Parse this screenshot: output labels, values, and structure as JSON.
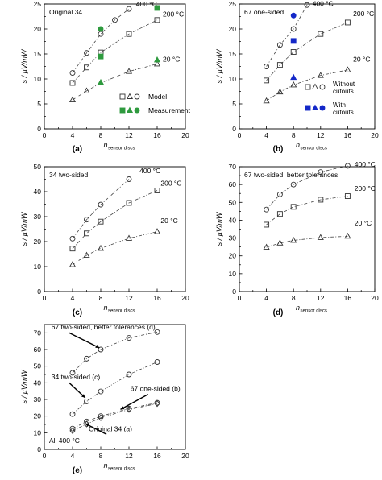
{
  "chart_data": [
    {
      "id": "a",
      "type": "scatter",
      "panel_label": "(a)",
      "title": "Original 34",
      "ylabel": "s / µV/mW",
      "xlabel": "n",
      "xlabel_sub": "sensor discs",
      "xlim": [
        0,
        20
      ],
      "ylim": [
        0,
        25
      ],
      "xticks": [
        0,
        4,
        8,
        12,
        16,
        20
      ],
      "yticks": [
        0,
        5,
        10,
        15,
        20,
        25
      ],
      "grid": false,
      "series": [
        {
          "name": "400 °C",
          "marker": "circle",
          "fill": "none",
          "line": "dashdot",
          "x": [
            4,
            6,
            8,
            10,
            12
          ],
          "y": [
            11.2,
            15.2,
            19.0,
            21.8,
            24.0
          ]
        },
        {
          "name": "200 °C",
          "marker": "square",
          "fill": "none",
          "line": "dashdot",
          "x": [
            4,
            6,
            8,
            12,
            16
          ],
          "y": [
            9.2,
            12.3,
            15.3,
            19.0,
            21.8
          ]
        },
        {
          "name": "20 °C",
          "marker": "triangle",
          "fill": "none",
          "line": "dashdot",
          "x": [
            4,
            6,
            8,
            12,
            16
          ],
          "y": [
            5.8,
            7.6,
            9.2,
            11.5,
            13.0
          ]
        },
        {
          "marker": "circle",
          "fill": "#2e9a3e",
          "line": "none",
          "x": [
            8
          ],
          "y": [
            20.0
          ]
        },
        {
          "marker": "square",
          "fill": "#2e9a3e",
          "line": "none",
          "x": [
            8,
            16
          ],
          "y": [
            14.5,
            24.2
          ]
        },
        {
          "marker": "triangle",
          "fill": "#2e9a3e",
          "line": "none",
          "x": [
            8,
            16
          ],
          "y": [
            9.3,
            13.8
          ]
        }
      ],
      "curve_labels": [
        {
          "text": "400 °C",
          "x": 13.0,
          "y": 24.5
        },
        {
          "text": "200 °C",
          "x": 16.8,
          "y": 22.5
        },
        {
          "text": "20 °C",
          "x": 16.8,
          "y": 13.5
        }
      ],
      "legend": {
        "position": "bottom-right",
        "entries": [
          {
            "label": "Model",
            "markers": [
              "square",
              "triangle",
              "circle"
            ],
            "fill": "none"
          },
          {
            "label": "Measurement",
            "markers": [
              "square",
              "triangle",
              "circle"
            ],
            "fill": "#2e9a3e"
          }
        ]
      }
    },
    {
      "id": "b",
      "type": "scatter",
      "panel_label": "(b)",
      "title": "67 one-sided",
      "ylabel": "s / µV/mW",
      "xlabel": "n",
      "xlabel_sub": "sensor discs",
      "xlim": [
        0,
        20
      ],
      "ylim": [
        0,
        25
      ],
      "xticks": [
        0,
        4,
        8,
        12,
        16,
        20
      ],
      "yticks": [
        0,
        5,
        10,
        15,
        20,
        25
      ],
      "grid": false,
      "series": [
        {
          "name": "400 °C",
          "marker": "circle",
          "fill": "none",
          "line": "dashdot",
          "x": [
            4,
            6,
            8,
            10
          ],
          "y": [
            12.5,
            16.8,
            20.0,
            24.8
          ]
        },
        {
          "name": "200 °C",
          "marker": "square",
          "fill": "none",
          "line": "dashdot",
          "x": [
            4,
            6,
            8,
            12,
            16
          ],
          "y": [
            9.7,
            12.8,
            15.4,
            19.0,
            21.3
          ]
        },
        {
          "name": "20 °C",
          "marker": "triangle",
          "fill": "none",
          "line": "dashdot",
          "x": [
            4,
            6,
            8,
            12,
            16
          ],
          "y": [
            5.6,
            7.4,
            8.8,
            10.7,
            11.8
          ]
        },
        {
          "marker": "circle",
          "fill": "#1428c8",
          "line": "none",
          "x": [
            8
          ],
          "y": [
            22.7
          ]
        },
        {
          "marker": "square",
          "fill": "#1428c8",
          "line": "none",
          "x": [
            8
          ],
          "y": [
            17.6
          ]
        },
        {
          "marker": "triangle",
          "fill": "#1428c8",
          "line": "none",
          "x": [
            8
          ],
          "y": [
            10.3
          ]
        }
      ],
      "curve_labels": [
        {
          "text": "400 °C",
          "x": 10.8,
          "y": 24.6
        },
        {
          "text": "200 °C",
          "x": 16.8,
          "y": 22.6
        },
        {
          "text": "20 °C",
          "x": 16.8,
          "y": 13.5
        }
      ],
      "legend": {
        "position": "bottom-right",
        "entries": [
          {
            "label_lines": [
              "Without",
              "cutouts"
            ],
            "markers": [
              "square",
              "triangle",
              "circle"
            ],
            "fill": "none"
          },
          {
            "label_lines": [
              "With",
              "cutouts"
            ],
            "markers": [
              "square",
              "triangle",
              "circle"
            ],
            "fill": "#1428c8"
          }
        ]
      }
    },
    {
      "id": "c",
      "type": "scatter",
      "panel_label": "(c)",
      "title": "34 two-sided",
      "ylabel": "s / µV/mW",
      "xlabel": "n",
      "xlabel_sub": "sensor discs",
      "xlim": [
        0,
        20
      ],
      "ylim": [
        0,
        50
      ],
      "xticks": [
        0,
        4,
        8,
        12,
        16,
        20
      ],
      "yticks": [
        0,
        10,
        20,
        30,
        40,
        50
      ],
      "grid": false,
      "series": [
        {
          "name": "400 °C",
          "marker": "circle",
          "fill": "none",
          "line": "dashdot",
          "x": [
            4,
            6,
            8,
            12
          ],
          "y": [
            21.2,
            28.8,
            34.8,
            45.0
          ]
        },
        {
          "name": "200 °C",
          "marker": "square",
          "fill": "none",
          "line": "dashdot",
          "x": [
            4,
            6,
            8,
            12,
            16
          ],
          "y": [
            17.2,
            23.3,
            28.0,
            35.5,
            40.5
          ]
        },
        {
          "name": "20 °C",
          "marker": "triangle",
          "fill": "none",
          "line": "dashdot",
          "x": [
            4,
            6,
            8,
            12,
            16
          ],
          "y": [
            10.8,
            14.5,
            17.3,
            21.3,
            24.0
          ]
        }
      ],
      "curve_labels": [
        {
          "text": "400 °C",
          "x": 13.5,
          "y": 47.5
        },
        {
          "text": "200 °C",
          "x": 16.5,
          "y": 42.5
        },
        {
          "text": "20 °C",
          "x": 16.5,
          "y": 27.5
        }
      ]
    },
    {
      "id": "d",
      "type": "scatter",
      "panel_label": "(d)",
      "title": "67 two-sided, better tolerances",
      "ylabel": "s / µV/mW",
      "xlabel": "n",
      "xlabel_sub": "sensor discs",
      "xlim": [
        0,
        20
      ],
      "ylim": [
        0,
        70
      ],
      "xticks": [
        0,
        4,
        8,
        12,
        16,
        20
      ],
      "yticks": [
        0,
        10,
        20,
        30,
        40,
        50,
        60,
        70
      ],
      "grid": false,
      "series": [
        {
          "name": "400 °C",
          "marker": "circle",
          "fill": "none",
          "line": "dashdot",
          "x": [
            4,
            6,
            8,
            12,
            16
          ],
          "y": [
            46.0,
            54.5,
            60.0,
            67.0,
            70.5
          ]
        },
        {
          "name": "200 °C",
          "marker": "square",
          "fill": "none",
          "line": "dashdot",
          "x": [
            4,
            6,
            8,
            12,
            16
          ],
          "y": [
            37.5,
            43.5,
            47.5,
            51.5,
            53.5
          ]
        },
        {
          "name": "20 °C",
          "marker": "triangle",
          "fill": "none",
          "line": "dashdot",
          "x": [
            4,
            6,
            8,
            12,
            16
          ],
          "y": [
            24.8,
            27.2,
            28.7,
            30.3,
            31.0
          ]
        }
      ],
      "curve_labels": [
        {
          "text": "400 °C",
          "x": 17.0,
          "y": 70.0
        },
        {
          "text": "200 °C",
          "x": 17.0,
          "y": 56.5
        },
        {
          "text": "20 °C",
          "x": 17.0,
          "y": 37.0
        }
      ]
    },
    {
      "id": "e",
      "type": "scatter",
      "panel_label": "(e)",
      "title": "All 400 °C",
      "ylabel": "s / µV/mW",
      "xlabel": "n",
      "xlabel_sub": "sensor discs",
      "xlim": [
        0,
        20
      ],
      "ylim": [
        0,
        75
      ],
      "xticks": [
        0,
        4,
        8,
        12,
        16,
        20
      ],
      "yticks": [
        0,
        10,
        20,
        30,
        40,
        50,
        60,
        70
      ],
      "grid": false,
      "series": [
        {
          "name": "67 two-sided, better tolerances (d)",
          "marker": "circle",
          "fill": "none",
          "line": "dashdot",
          "x": [
            4,
            6,
            8,
            12,
            16
          ],
          "y": [
            46.0,
            54.5,
            60.0,
            67.0,
            70.5
          ]
        },
        {
          "name": "34 two-sided (c)",
          "marker": "circle",
          "fill": "none",
          "line": "dashdot",
          "x": [
            4,
            6,
            8,
            12,
            16
          ],
          "y": [
            21.2,
            28.8,
            34.8,
            45.0,
            52.5
          ]
        },
        {
          "name": "67 one-sided (b)",
          "marker": "circle",
          "fill": "none",
          "line": "dashdot",
          "x": [
            4,
            6,
            8,
            12,
            16
          ],
          "y": [
            12.5,
            16.8,
            20.0,
            24.5,
            28.0
          ]
        },
        {
          "name": "Original 34 (a)",
          "marker": "diamond",
          "fill": "none",
          "line": "dashdot",
          "x": [
            4,
            6,
            8,
            12,
            16
          ],
          "y": [
            11.2,
            15.2,
            19.0,
            24.0,
            27.5
          ]
        }
      ],
      "annotations": [
        {
          "text": "67 two-sided, better tolerances (d)",
          "tx": 1.0,
          "ty": 72.0,
          "ax": 7.8,
          "ay": 61.0
        },
        {
          "text": "34 two-sided (c)",
          "tx": 1.0,
          "ty": 42.0,
          "ax": 5.8,
          "ay": 31.0
        },
        {
          "text": "67 one-sided (b)",
          "tx": 12.2,
          "ty": 35.0,
          "ax": 10.8,
          "ay": 24.0
        },
        {
          "text": "Original 34 (a)",
          "tx": 6.3,
          "ty": 11.0,
          "ax": 5.8,
          "ay": 15.5
        }
      ]
    }
  ]
}
